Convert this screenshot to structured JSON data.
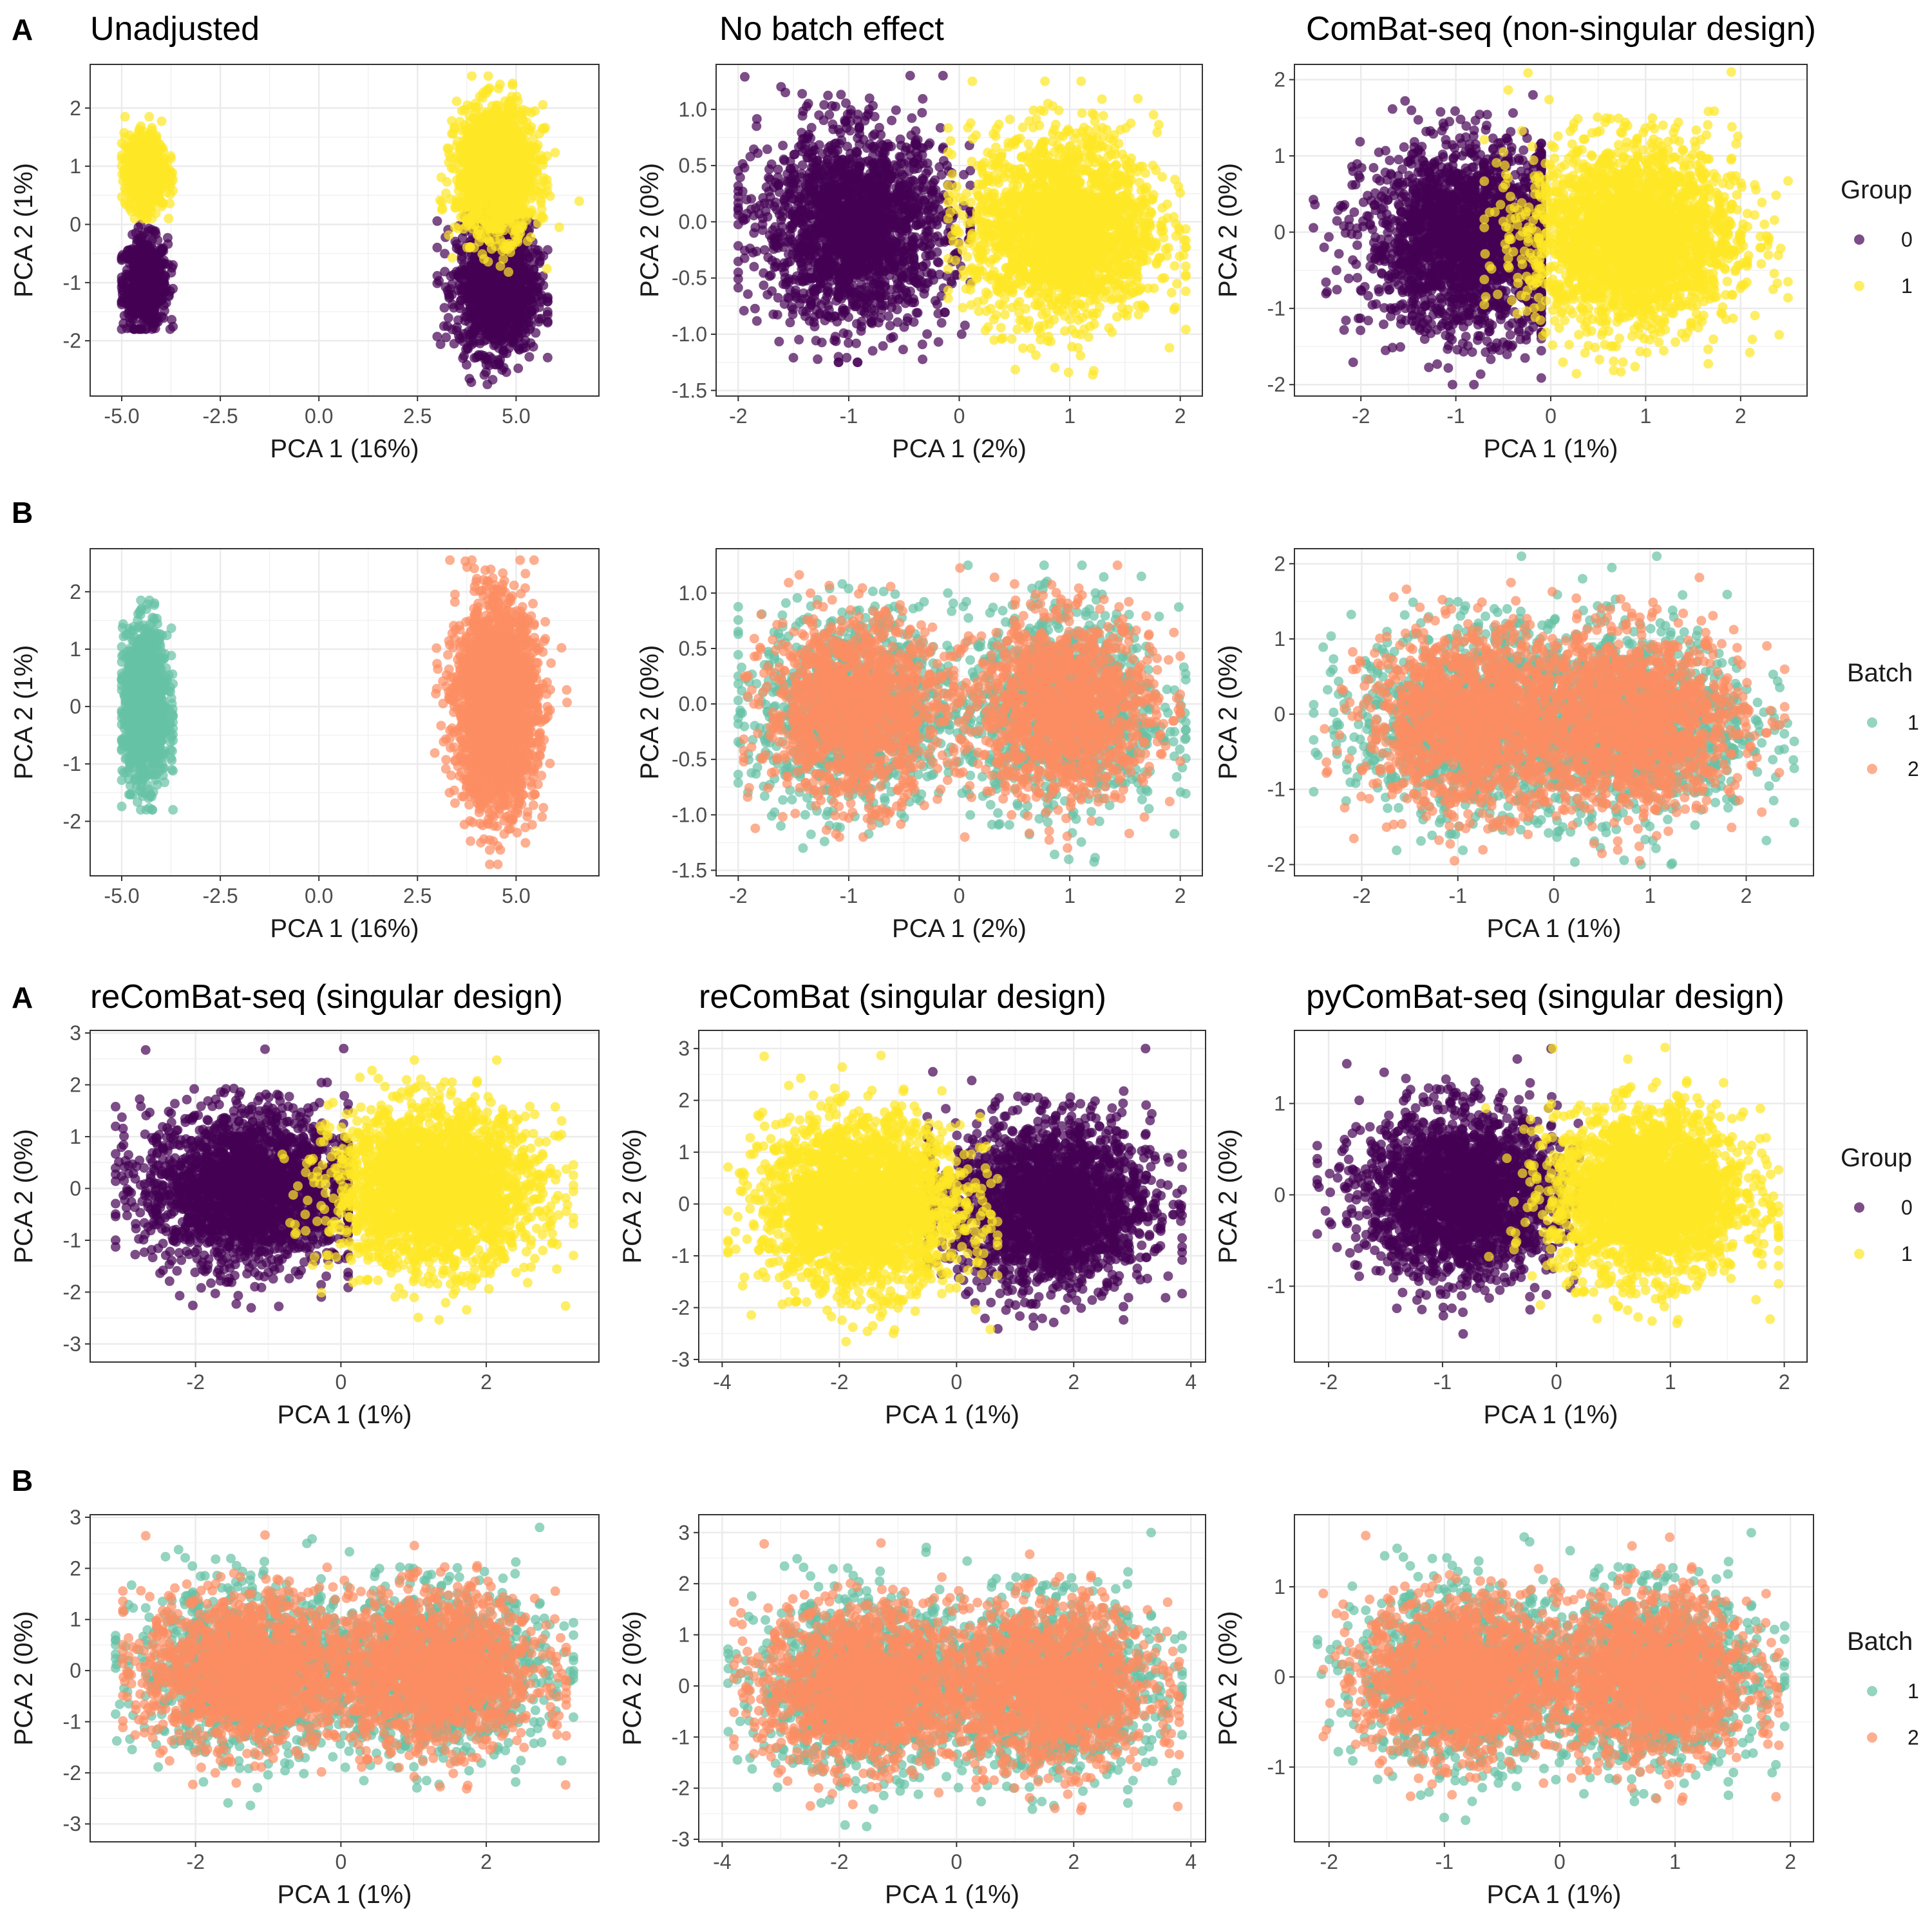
{
  "figure": {
    "section_letters": [
      "A",
      "B",
      "A",
      "B"
    ],
    "legends": [
      {
        "title": "Group",
        "items": [
          {
            "label": "0",
            "color": "#440154"
          },
          {
            "label": "1",
            "color": "#FDE725"
          }
        ]
      },
      {
        "title": "Batch",
        "items": [
          {
            "label": "1",
            "color": "#66C2A5"
          },
          {
            "label": "2",
            "color": "#FC8D62"
          }
        ]
      },
      {
        "title": "Group",
        "items": [
          {
            "label": "0",
            "color": "#440154"
          },
          {
            "label": "1",
            "color": "#FDE725"
          }
        ]
      },
      {
        "title": "Batch",
        "items": [
          {
            "label": "1",
            "color": "#66C2A5"
          },
          {
            "label": "2",
            "color": "#FC8D62"
          }
        ]
      }
    ]
  },
  "chart_data": [
    {
      "type": "scatter",
      "title": "Unadjusted",
      "xlabel": "PCA 1 (16%)",
      "ylabel": "PCA 2 (1%)",
      "color_by": "Group",
      "xlim": [
        -5.8,
        7.1
      ],
      "ylim": [
        -2.95,
        2.75
      ],
      "xticks": [
        "-5.0",
        "-2.5",
        "0.0",
        "2.5",
        "5.0"
      ],
      "yticks": [
        "-2",
        "-1",
        "0",
        "1",
        "2"
      ],
      "series": [
        {
          "name": "0",
          "color": "#440154",
          "clusters": [
            {
              "cx": -4.4,
              "cy": -1.0,
              "sx": 0.28,
              "sy": 0.38,
              "xmin": -5.0,
              "xmax": -3.7,
              "ymin": -1.8,
              "ymax": 0.0,
              "n": 650
            },
            {
              "cx": 4.5,
              "cy": -1.1,
              "sx": 0.5,
              "sy": 0.55,
              "xmin": 3.0,
              "xmax": 5.8,
              "ymin": -2.75,
              "ymax": 0.5,
              "n": 1300
            }
          ]
        },
        {
          "name": "1",
          "color": "#FDE725",
          "clusters": [
            {
              "cx": -4.4,
              "cy": 0.9,
              "sx": 0.26,
              "sy": 0.32,
              "xmin": -5.0,
              "xmax": -3.7,
              "ymin": 0.1,
              "ymax": 1.85,
              "n": 650
            },
            {
              "cx": 4.5,
              "cy": 0.9,
              "sx": 0.5,
              "sy": 0.55,
              "xmin": 2.9,
              "xmax": 6.6,
              "ymin": -1.3,
              "ymax": 2.55,
              "n": 1500
            }
          ]
        }
      ]
    },
    {
      "type": "scatter",
      "title": "No batch effect",
      "xlabel": "PCA 1 (2%)",
      "ylabel": "PCA 2 (0%)",
      "color_by": "Group",
      "xlim": [
        -2.2,
        2.2
      ],
      "ylim": [
        -1.55,
        1.4
      ],
      "xticks": [
        "-2",
        "-1",
        "0",
        "1",
        "2"
      ],
      "yticks": [
        "-1.5",
        "-1.0",
        "-0.5",
        "0.0",
        "0.5",
        "1.0"
      ],
      "series": [
        {
          "name": "0",
          "color": "#440154",
          "clusters": [
            {
              "cx": -0.95,
              "cy": -0.05,
              "sx": 0.42,
              "sy": 0.42,
              "xmin": -2.0,
              "xmax": 0.1,
              "ymin": -1.25,
              "ymax": 1.3,
              "n": 2000
            }
          ]
        },
        {
          "name": "1",
          "color": "#FDE725",
          "clusters": [
            {
              "cx": 0.95,
              "cy": -0.05,
              "sx": 0.42,
              "sy": 0.42,
              "xmin": -0.1,
              "xmax": 2.05,
              "ymin": -1.45,
              "ymax": 1.25,
              "n": 2000
            }
          ]
        }
      ]
    },
    {
      "type": "scatter",
      "title": "ComBat-seq (non-singular design)",
      "xlabel": "PCA 1 (1%)",
      "ylabel": "PCA 2 (0%)",
      "color_by": "Group",
      "xlim": [
        -2.7,
        2.7
      ],
      "ylim": [
        -2.15,
        2.2
      ],
      "xticks": [
        "-2",
        "-1",
        "0",
        "1",
        "2"
      ],
      "yticks": [
        "-2",
        "-1",
        "0",
        "1",
        "2"
      ],
      "series": [
        {
          "name": "0",
          "color": "#440154",
          "clusters": [
            {
              "cx": -0.85,
              "cy": -0.1,
              "sx": 0.55,
              "sy": 0.6,
              "xmin": -2.5,
              "xmax": -0.1,
              "ymin": -2.0,
              "ymax": 1.8,
              "n": 2200
            }
          ]
        },
        {
          "name": "1",
          "color": "#FDE725",
          "clusters": [
            {
              "cx": 0.85,
              "cy": -0.05,
              "sx": 0.55,
              "sy": 0.6,
              "xmin": -0.7,
              "xmax": 2.5,
              "ymin": -1.95,
              "ymax": 2.1,
              "n": 2400
            }
          ]
        }
      ]
    },
    {
      "type": "scatter",
      "title": "",
      "xlabel": "PCA 1 (16%)",
      "ylabel": "PCA 2 (1%)",
      "color_by": "Batch",
      "xlim": [
        -5.8,
        7.1
      ],
      "ylim": [
        -2.95,
        2.75
      ],
      "xticks": [
        "-5.0",
        "-2.5",
        "0.0",
        "2.5",
        "5.0"
      ],
      "yticks": [
        "-2",
        "-1",
        "0",
        "1",
        "2"
      ],
      "series": [
        {
          "name": "1",
          "color": "#66C2A5",
          "clusters": [
            {
              "cx": -4.4,
              "cy": 0.0,
              "sx": 0.28,
              "sy": 0.65,
              "xmin": -5.0,
              "xmax": -3.7,
              "ymin": -1.8,
              "ymax": 1.85,
              "n": 1300
            }
          ]
        },
        {
          "name": "2",
          "color": "#FC8D62",
          "clusters": [
            {
              "cx": 4.5,
              "cy": 0.0,
              "sx": 0.5,
              "sy": 0.85,
              "xmin": 2.9,
              "xmax": 6.6,
              "ymin": -2.75,
              "ymax": 2.55,
              "n": 2600
            }
          ]
        }
      ]
    },
    {
      "type": "scatter",
      "title": "",
      "xlabel": "PCA 1 (2%)",
      "ylabel": "PCA 2 (0%)",
      "color_by": "Batch",
      "xlim": [
        -2.2,
        2.2
      ],
      "ylim": [
        -1.55,
        1.4
      ],
      "xticks": [
        "-2",
        "-1",
        "0",
        "1",
        "2"
      ],
      "yticks": [
        "-1.5",
        "-1.0",
        "-0.5",
        "0.0",
        "0.5",
        "1.0"
      ],
      "series": [
        {
          "name": "1",
          "color": "#66C2A5",
          "clusters": [
            {
              "cx": -0.95,
              "cy": -0.05,
              "sx": 0.44,
              "sy": 0.44,
              "xmin": -2.0,
              "xmax": 0.1,
              "ymin": -1.3,
              "ymax": 1.3,
              "n": 1100
            },
            {
              "cx": 0.95,
              "cy": -0.05,
              "sx": 0.44,
              "sy": 0.44,
              "xmin": -0.1,
              "xmax": 2.05,
              "ymin": -1.45,
              "ymax": 1.25,
              "n": 1100
            }
          ]
        },
        {
          "name": "2",
          "color": "#FC8D62",
          "clusters": [
            {
              "cx": -0.95,
              "cy": -0.05,
              "sx": 0.4,
              "sy": 0.4,
              "xmin": -1.95,
              "xmax": 0.05,
              "ymin": -1.2,
              "ymax": 1.25,
              "n": 1300
            },
            {
              "cx": 0.95,
              "cy": -0.05,
              "sx": 0.4,
              "sy": 0.4,
              "xmin": -0.05,
              "xmax": 2.0,
              "ymin": -1.3,
              "ymax": 1.25,
              "n": 1300
            }
          ]
        }
      ]
    },
    {
      "type": "scatter",
      "title": "",
      "xlabel": "PCA 1 (1%)",
      "ylabel": "PCA 2 (0%)",
      "color_by": "Batch",
      "xlim": [
        -2.7,
        2.7
      ],
      "ylim": [
        -2.15,
        2.2
      ],
      "xticks": [
        "-2",
        "-1",
        "0",
        "1",
        "2"
      ],
      "yticks": [
        "-2",
        "-1",
        "0",
        "1",
        "2"
      ],
      "series": [
        {
          "name": "1",
          "color": "#66C2A5",
          "clusters": [
            {
              "cx": -0.85,
              "cy": -0.1,
              "sx": 0.6,
              "sy": 0.62,
              "xmin": -2.5,
              "xmax": 0.5,
              "ymin": -2.0,
              "ymax": 1.8,
              "n": 1200
            },
            {
              "cx": 0.85,
              "cy": -0.1,
              "sx": 0.6,
              "sy": 0.62,
              "xmin": -0.5,
              "xmax": 2.5,
              "ymin": -2.0,
              "ymax": 2.1,
              "n": 1200
            }
          ]
        },
        {
          "name": "2",
          "color": "#FC8D62",
          "clusters": [
            {
              "cx": -0.85,
              "cy": -0.1,
              "sx": 0.55,
              "sy": 0.58,
              "xmin": -2.4,
              "xmax": 0.5,
              "ymin": -1.95,
              "ymax": 1.8,
              "n": 1400
            },
            {
              "cx": 0.85,
              "cy": -0.1,
              "sx": 0.55,
              "sy": 0.58,
              "xmin": -0.5,
              "xmax": 2.4,
              "ymin": -1.95,
              "ymax": 2.1,
              "n": 1400
            }
          ]
        }
      ]
    },
    {
      "type": "scatter",
      "title": "reComBat-seq (singular design)",
      "xlabel": "PCA 1 (1%)",
      "ylabel": "PCA 2 (0%)",
      "color_by": "Group",
      "xlim": [
        -3.45,
        3.55
      ],
      "ylim": [
        -3.35,
        3.05
      ],
      "xticks": [
        "-2",
        "0",
        "2"
      ],
      "yticks": [
        "-3",
        "-2",
        "-1",
        "0",
        "1",
        "2",
        "3"
      ],
      "series": [
        {
          "name": "0",
          "color": "#440154",
          "clusters": [
            {
              "cx": -1.3,
              "cy": 0.0,
              "sx": 0.7,
              "sy": 0.75,
              "xmin": -3.1,
              "xmax": 0.1,
              "ymin": -2.8,
              "ymax": 2.7,
              "n": 2200
            }
          ]
        },
        {
          "name": "1",
          "color": "#FDE725",
          "clusters": [
            {
              "cx": 1.3,
              "cy": 0.0,
              "sx": 0.7,
              "sy": 0.75,
              "xmin": -0.95,
              "xmax": 3.2,
              "ymin": -3.1,
              "ymax": 2.8,
              "n": 2400
            }
          ]
        }
      ]
    },
    {
      "type": "scatter",
      "title": "reComBat (singular design)",
      "xlabel": "PCA 1 (1%)",
      "ylabel": "PCA 2 (0%)",
      "color_by": "Group",
      "xlim": [
        -4.4,
        4.25
      ],
      "ylim": [
        -3.05,
        3.35
      ],
      "xticks": [
        "-4",
        "-2",
        "0",
        "2",
        "4"
      ],
      "yticks": [
        "-3",
        "-2",
        "-1",
        "0",
        "1",
        "2",
        "3"
      ],
      "series": [
        {
          "name": "0",
          "color": "#440154",
          "clusters": [
            {
              "cx": 1.6,
              "cy": 0.0,
              "sx": 0.85,
              "sy": 0.8,
              "xmin": -0.5,
              "xmax": 3.85,
              "ymin": -2.85,
              "ymax": 3.0,
              "n": 2200
            }
          ]
        },
        {
          "name": "1",
          "color": "#FDE725",
          "clusters": [
            {
              "cx": -1.6,
              "cy": 0.0,
              "sx": 0.85,
              "sy": 0.8,
              "xmin": -3.9,
              "xmax": 0.7,
              "ymin": -2.75,
              "ymax": 3.05,
              "n": 2400
            }
          ]
        }
      ]
    },
    {
      "type": "scatter",
      "title": "pyComBat-seq (singular design)",
      "xlabel": "PCA 1 (1%)",
      "ylabel": "PCA 2 (0%)",
      "color_by": "Group",
      "xlim": [
        -2.3,
        2.2
      ],
      "ylim": [
        -1.83,
        1.8
      ],
      "xticks": [
        "-2",
        "-1",
        "0",
        "1",
        "2"
      ],
      "yticks": [
        "-1",
        "0",
        "1"
      ],
      "series": [
        {
          "name": "0",
          "color": "#440154",
          "clusters": [
            {
              "cx": -0.85,
              "cy": 0.0,
              "sx": 0.42,
              "sy": 0.45,
              "xmin": -2.1,
              "xmax": 0.2,
              "ymin": -1.6,
              "ymax": 1.6,
              "n": 2200
            }
          ]
        },
        {
          "name": "1",
          "color": "#FDE725",
          "clusters": [
            {
              "cx": 0.8,
              "cy": 0.0,
              "sx": 0.42,
              "sy": 0.45,
              "xmin": -0.65,
              "xmax": 1.95,
              "ymin": -1.65,
              "ymax": 1.65,
              "n": 2400
            }
          ]
        }
      ]
    },
    {
      "type": "scatter",
      "title": "",
      "xlabel": "PCA 1 (1%)",
      "ylabel": "PCA 2 (0%)",
      "color_by": "Batch",
      "xlim": [
        -3.45,
        3.55
      ],
      "ylim": [
        -3.35,
        3.05
      ],
      "xticks": [
        "-2",
        "0",
        "2"
      ],
      "yticks": [
        "-3",
        "-2",
        "-1",
        "0",
        "1",
        "2",
        "3"
      ],
      "series": [
        {
          "name": "1",
          "color": "#66C2A5",
          "clusters": [
            {
              "cx": -1.3,
              "cy": 0.0,
              "sx": 0.75,
              "sy": 0.78,
              "xmin": -3.1,
              "xmax": 1.0,
              "ymin": -2.8,
              "ymax": 2.7,
              "n": 1200
            },
            {
              "cx": 1.3,
              "cy": 0.0,
              "sx": 0.75,
              "sy": 0.78,
              "xmin": -1.0,
              "xmax": 3.2,
              "ymin": -3.1,
              "ymax": 2.8,
              "n": 1200
            }
          ]
        },
        {
          "name": "2",
          "color": "#FC8D62",
          "clusters": [
            {
              "cx": -1.3,
              "cy": 0.0,
              "sx": 0.7,
              "sy": 0.74,
              "xmin": -3.0,
              "xmax": 1.0,
              "ymin": -2.8,
              "ymax": 2.7,
              "n": 1400
            },
            {
              "cx": 1.3,
              "cy": 0.0,
              "sx": 0.7,
              "sy": 0.74,
              "xmin": -1.0,
              "xmax": 3.1,
              "ymin": -3.15,
              "ymax": 2.8,
              "n": 1400
            }
          ]
        }
      ]
    },
    {
      "type": "scatter",
      "title": "",
      "xlabel": "PCA 1 (1%)",
      "ylabel": "PCA 2 (0%)",
      "color_by": "Batch",
      "xlim": [
        -4.4,
        4.25
      ],
      "ylim": [
        -3.05,
        3.35
      ],
      "xticks": [
        "-4",
        "-2",
        "0",
        "2",
        "4"
      ],
      "yticks": [
        "-3",
        "-2",
        "-1",
        "0",
        "1",
        "2",
        "3"
      ],
      "series": [
        {
          "name": "1",
          "color": "#66C2A5",
          "clusters": [
            {
              "cx": -1.6,
              "cy": 0.0,
              "sx": 0.9,
              "sy": 0.82,
              "xmin": -3.9,
              "xmax": 1.0,
              "ymin": -2.75,
              "ymax": 3.05,
              "n": 1200
            },
            {
              "cx": 1.6,
              "cy": 0.0,
              "sx": 0.9,
              "sy": 0.82,
              "xmin": -1.0,
              "xmax": 3.85,
              "ymin": -2.85,
              "ymax": 3.0,
              "n": 1200
            }
          ]
        },
        {
          "name": "2",
          "color": "#FC8D62",
          "clusters": [
            {
              "cx": -1.6,
              "cy": 0.0,
              "sx": 0.85,
              "sy": 0.78,
              "xmin": -3.8,
              "xmax": 1.0,
              "ymin": -2.7,
              "ymax": 2.9,
              "n": 1400
            },
            {
              "cx": 1.6,
              "cy": 0.0,
              "sx": 0.85,
              "sy": 0.78,
              "xmin": -1.0,
              "xmax": 3.8,
              "ymin": -2.8,
              "ymax": 2.9,
              "n": 1400
            }
          ]
        }
      ]
    },
    {
      "type": "scatter",
      "title": "",
      "xlabel": "PCA 1 (1%)",
      "ylabel": "PCA 2 (0%)",
      "color_by": "Batch",
      "xlim": [
        -2.3,
        2.2
      ],
      "ylim": [
        -1.83,
        1.8
      ],
      "xticks": [
        "-2",
        "-1",
        "0",
        "1",
        "2"
      ],
      "yticks": [
        "-1",
        "0",
        "1"
      ],
      "series": [
        {
          "name": "1",
          "color": "#66C2A5",
          "clusters": [
            {
              "cx": -0.85,
              "cy": 0.0,
              "sx": 0.45,
              "sy": 0.47,
              "xmin": -2.1,
              "xmax": 0.5,
              "ymin": -1.65,
              "ymax": 1.6,
              "n": 1200
            },
            {
              "cx": 0.8,
              "cy": 0.0,
              "sx": 0.45,
              "sy": 0.47,
              "xmin": -0.5,
              "xmax": 1.95,
              "ymin": -1.65,
              "ymax": 1.6,
              "n": 1200
            }
          ]
        },
        {
          "name": "2",
          "color": "#FC8D62",
          "clusters": [
            {
              "cx": -0.85,
              "cy": 0.0,
              "sx": 0.42,
              "sy": 0.44,
              "xmin": -2.05,
              "xmax": 0.5,
              "ymin": -1.6,
              "ymax": 1.6,
              "n": 1400
            },
            {
              "cx": 0.8,
              "cy": 0.0,
              "sx": 0.42,
              "sy": 0.44,
              "xmin": -0.5,
              "xmax": 1.9,
              "ymin": -1.6,
              "ymax": 1.55,
              "n": 1400
            }
          ]
        }
      ]
    }
  ]
}
